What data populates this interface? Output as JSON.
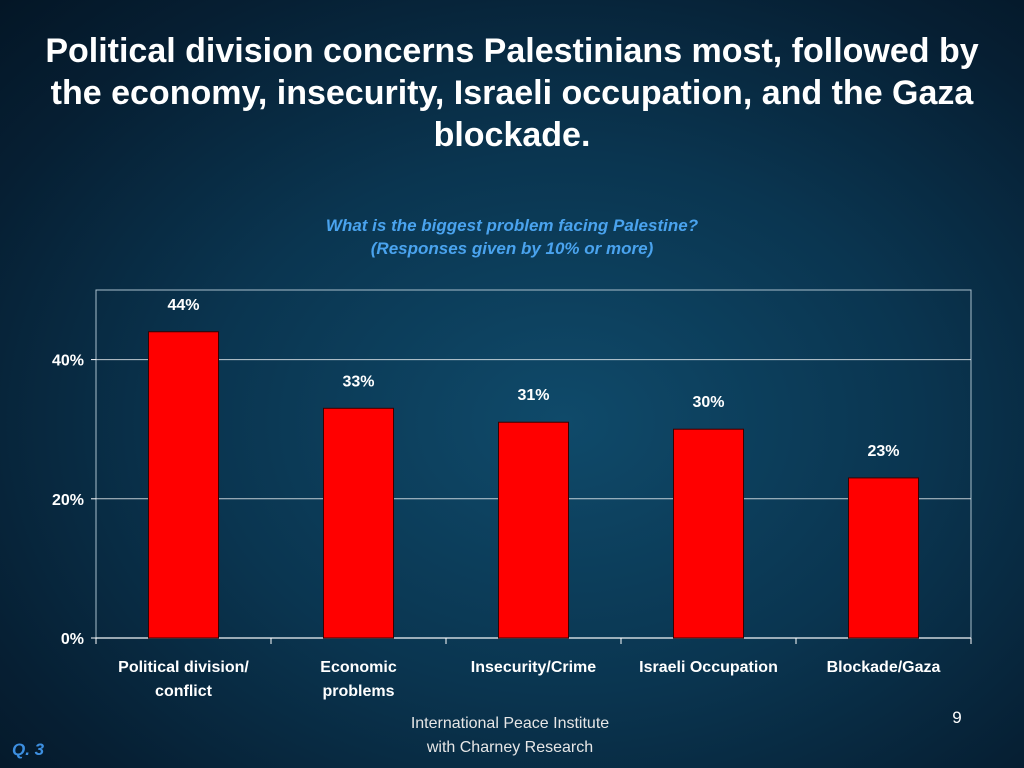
{
  "title": "Political division concerns Palestinians most, followed by the economy, insecurity, Israeli occupation, and the Gaza blockade.",
  "subtitle_lines": [
    "What is the biggest problem facing Palestine?",
    "(Responses given by 10% or more)"
  ],
  "footer_lines": [
    "International Peace Institute",
    "with Charney Research"
  ],
  "page_number": "9",
  "question_ref": "Q. 3",
  "colors": {
    "bar": "#ff0000",
    "bar_outline": "#3a0000",
    "accent_text": "#4aa3ee",
    "grid": "#ffffff"
  },
  "chart_data": {
    "type": "bar",
    "categories": [
      [
        "Political division/",
        "conflict"
      ],
      [
        "Economic",
        "problems"
      ],
      [
        "Insecurity/Crime"
      ],
      [
        "Israeli Occupation"
      ],
      [
        "Blockade/Gaza"
      ]
    ],
    "values": [
      44,
      33,
      31,
      30,
      23
    ],
    "data_labels": [
      "44%",
      "33%",
      "31%",
      "30%",
      "23%"
    ],
    "ylim": [
      0,
      50
    ],
    "yticks": [
      0,
      20,
      40
    ],
    "ytick_labels": [
      "0%",
      "20%",
      "40%"
    ],
    "grid": true,
    "legend": "none"
  }
}
